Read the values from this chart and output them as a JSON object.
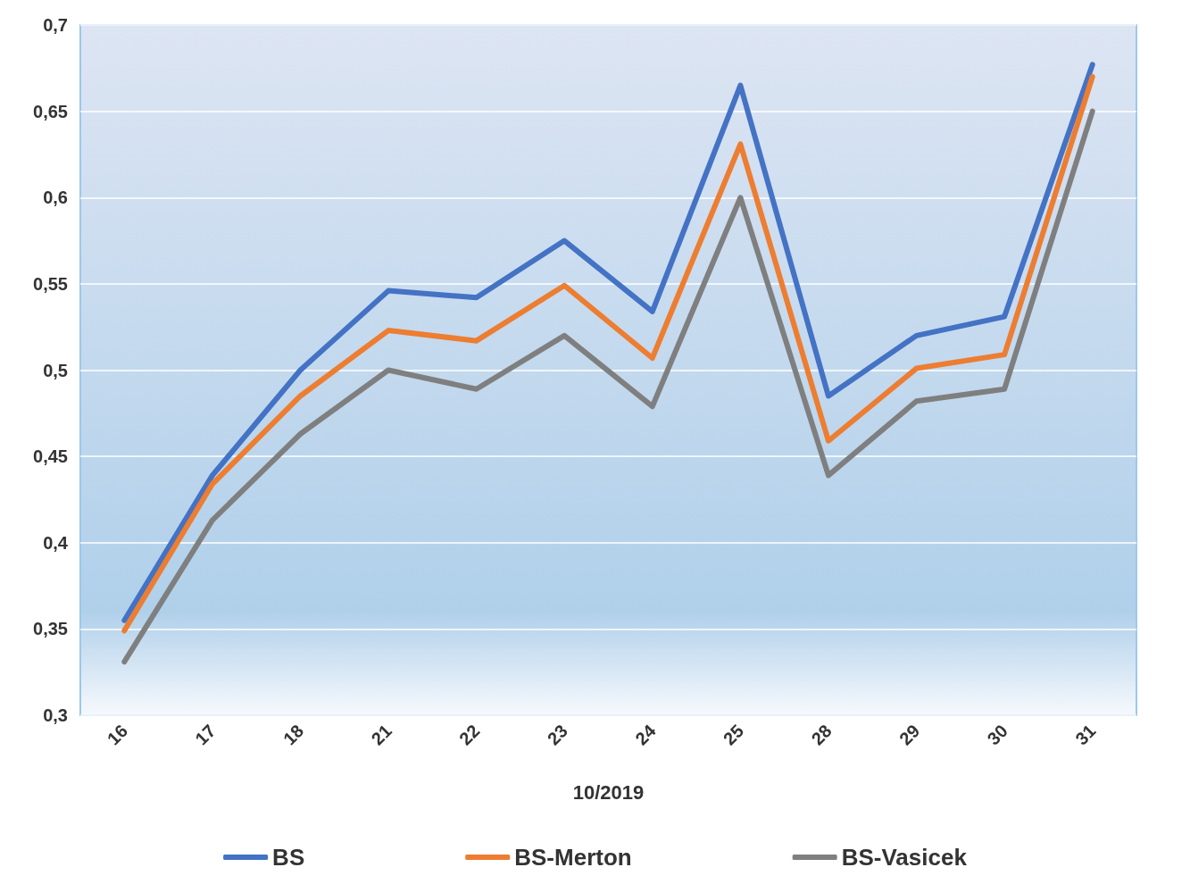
{
  "chart_data": {
    "type": "line",
    "xlabel": "10/2019",
    "categories": [
      "16",
      "17",
      "18",
      "21",
      "22",
      "23",
      "24",
      "25",
      "28",
      "29",
      "30",
      "31"
    ],
    "series": [
      {
        "name": "BS",
        "color": "#4472c4",
        "values": [
          0.355,
          0.439,
          0.5,
          0.546,
          0.542,
          0.575,
          0.534,
          0.665,
          0.485,
          0.52,
          0.531,
          0.677
        ]
      },
      {
        "name": "BS-Merton",
        "color": "#ed7d31",
        "values": [
          0.349,
          0.434,
          0.485,
          0.523,
          0.517,
          0.549,
          0.507,
          0.631,
          0.459,
          0.501,
          0.509,
          0.67
        ]
      },
      {
        "name": "BS-Vasicek",
        "color": "#7f7f7f",
        "values": [
          0.331,
          0.413,
          0.463,
          0.5,
          0.489,
          0.52,
          0.479,
          0.6,
          0.439,
          0.482,
          0.489,
          0.65
        ]
      }
    ],
    "ylim": [
      0.3,
      0.7
    ],
    "yticks": [
      {
        "value": 0.3,
        "label": "0,3"
      },
      {
        "value": 0.35,
        "label": "0,35"
      },
      {
        "value": 0.4,
        "label": "0,4"
      },
      {
        "value": 0.45,
        "label": "0,45"
      },
      {
        "value": 0.5,
        "label": "0,5"
      },
      {
        "value": 0.55,
        "label": "0,55"
      },
      {
        "value": 0.6,
        "label": "0,6"
      },
      {
        "value": 0.65,
        "label": "0,65"
      },
      {
        "value": 0.7,
        "label": "0,7"
      }
    ],
    "grid": "y",
    "legend": "bottom",
    "marker": "none",
    "line_style": "solid"
  }
}
